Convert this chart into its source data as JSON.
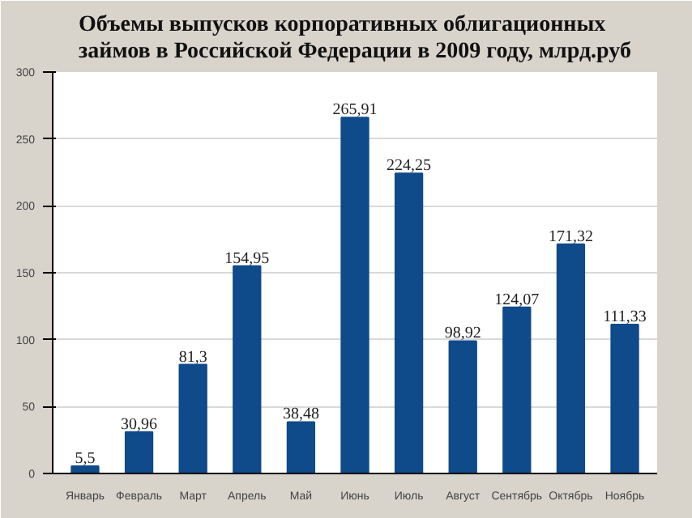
{
  "chart_data": {
    "type": "bar",
    "title": "Объемы выпусков корпоративных облигационных\nзаймов в Российской Федерации в 2009 году, млрд.руб",
    "categories": [
      "Январь",
      "Февраль",
      "Март",
      "Апрель",
      "Май",
      "Июнь",
      "Июль",
      "Август",
      "Сентябрь",
      "Октябрь",
      "Ноябрь"
    ],
    "values": [
      5.5,
      30.96,
      81.3,
      154.95,
      38.48,
      265.91,
      224.25,
      98.92,
      124.07,
      171.32,
      111.33
    ],
    "value_labels": [
      "5,5",
      "30,96",
      "81,3",
      "154,95",
      "38,48",
      "265,91",
      "224,25",
      "98,92",
      "124,07",
      "171,32",
      "111,33"
    ],
    "color": "#0f4a8a",
    "ylim": [
      0,
      300
    ],
    "yticks": [
      0,
      50,
      100,
      150,
      200,
      250,
      300
    ],
    "grid": "y"
  }
}
